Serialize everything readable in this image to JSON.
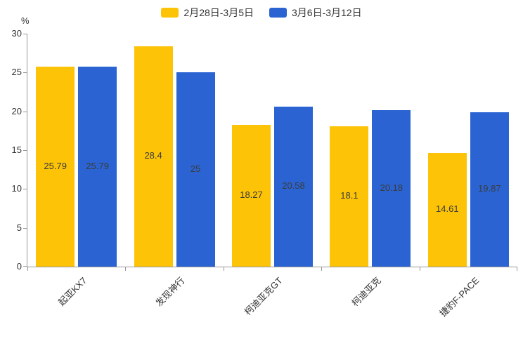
{
  "chart_data": {
    "type": "bar",
    "title": "",
    "categories": [
      "起亚KX7",
      "发现神行",
      "柯迪亚克GT",
      "柯迪亚克",
      "捷豹F-PACE"
    ],
    "series": [
      {
        "name": "2月28日-3月5日",
        "color": "#FCC307",
        "values": [
          25.79,
          28.4,
          18.27,
          18.1,
          14.61
        ]
      },
      {
        "name": "3月6日-3月12日",
        "color": "#2B64D2",
        "values": [
          25.79,
          25,
          20.58,
          20.18,
          19.87
        ]
      }
    ],
    "xlabel": "",
    "ylabel": "%",
    "ylim": [
      0,
      30
    ],
    "yticks": [
      0,
      5,
      10,
      15,
      20,
      25,
      30
    ],
    "legend_position": "top",
    "grid": false,
    "value_labels": true
  },
  "colors": {
    "axis": "#999999",
    "text": "#333333"
  }
}
